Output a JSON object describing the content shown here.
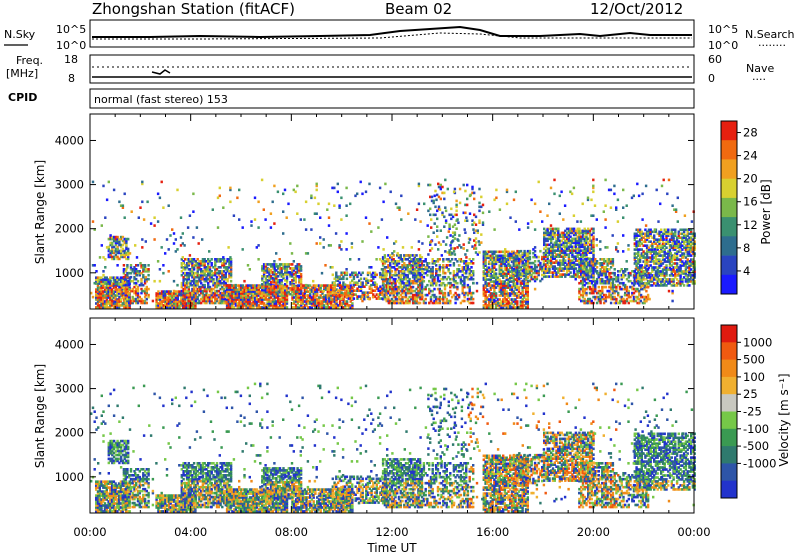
{
  "header": {
    "station": "Zhongshan Station (fitACF)",
    "beam": "Beam 02",
    "date": "12/Oct/2012"
  },
  "top_strip": {
    "left_label": "N.Sky",
    "left_ticks": [
      "10^5",
      "10^0"
    ],
    "right_ticks": [
      "10^5",
      "10^0"
    ],
    "right_label": "N.Search",
    "right_legend_line": "........"
  },
  "freq_strip": {
    "left_label_1": "Freq.",
    "left_label_2": "[MHz]",
    "left_ticks": [
      "18",
      "8"
    ],
    "right_ticks": [
      "60",
      "0"
    ],
    "right_label": "Nave",
    "right_legend_line": "...."
  },
  "cpid": {
    "label": "CPID",
    "mode": "normal (fast stereo) 153"
  },
  "x_axis": {
    "label": "Time UT",
    "ticks": [
      "00:00",
      "04:00",
      "08:00",
      "12:00",
      "16:00",
      "20:00",
      "00:00"
    ]
  },
  "chart_data": [
    {
      "type": "heatmap",
      "title": "",
      "xlabel": "Time UT",
      "ylabel": "Slant Range [km]",
      "xlim": [
        0,
        24
      ],
      "ylim": [
        180,
        4600
      ],
      "yticks": [
        "1000",
        "2000",
        "3000",
        "4000"
      ],
      "colorbar": {
        "label": "Power [dB]",
        "ticks": [
          "4",
          "8",
          "12",
          "16",
          "20",
          "24",
          "28"
        ],
        "range": [
          0,
          30
        ],
        "colors": [
          "#1a1aff",
          "#2a44c0",
          "#2e6d8e",
          "#3a9070",
          "#7ab84a",
          "#d8d030",
          "#f0a020",
          "#f06a10",
          "#e62010"
        ]
      }
    },
    {
      "type": "heatmap",
      "title": "",
      "xlabel": "Time UT",
      "ylabel": "Slant Range [km]",
      "xlim": [
        0,
        24
      ],
      "ylim": [
        180,
        4600
      ],
      "yticks": [
        "1000",
        "2000",
        "3000",
        "4000"
      ],
      "colorbar": {
        "label": "Velocity [m s⁻¹]",
        "ticks": [
          "1000",
          "500",
          "100",
          "25",
          "-25",
          "-100",
          "-500",
          "-1000"
        ],
        "colors": [
          "#2233cc",
          "#2e55a8",
          "#2f7a6e",
          "#3a9a52",
          "#76c848",
          "#c8c8c0",
          "#f0b030",
          "#f08a18",
          "#f05a10",
          "#e01a10"
        ]
      }
    }
  ]
}
